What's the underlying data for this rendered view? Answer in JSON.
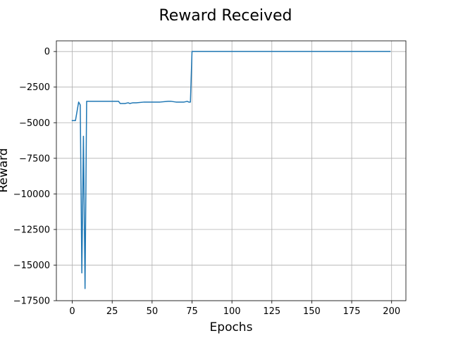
{
  "chart_data": {
    "type": "line",
    "title": "Reward Received",
    "xlabel": "Epochs",
    "ylabel": "Reward",
    "xlim": [
      -9.95,
      208.95
    ],
    "ylim": [
      -17500,
      750
    ],
    "grid": true,
    "legend": "none",
    "x_ticks": [
      0,
      25,
      50,
      75,
      100,
      125,
      150,
      175,
      200
    ],
    "y_ticks": [
      0,
      -2500,
      -5000,
      -7500,
      -10000,
      -12500,
      -15000,
      -17500
    ],
    "x_tick_labels": [
      "0",
      "25",
      "50",
      "75",
      "100",
      "125",
      "150",
      "175",
      "200"
    ],
    "y_tick_labels": [
      "0",
      "−2500",
      "−5000",
      "−7500",
      "−10000",
      "−12500",
      "−15000",
      "−17500"
    ],
    "series": [
      {
        "color": "#1f77b4",
        "x": [
          0,
          1,
          2,
          3,
          4,
          5,
          6,
          7,
          8,
          9,
          10,
          15,
          20,
          25,
          29,
          30,
          33,
          35,
          36,
          38,
          40,
          45,
          50,
          55,
          60,
          62,
          65,
          68,
          70,
          72,
          73,
          74,
          75,
          199
        ],
        "y": [
          -4850,
          -4850,
          -4850,
          -4200,
          -3550,
          -3750,
          -15550,
          -5950,
          -16650,
          -3500,
          -3500,
          -3500,
          -3500,
          -3500,
          -3500,
          -3650,
          -3650,
          -3600,
          -3650,
          -3600,
          -3600,
          -3550,
          -3550,
          -3550,
          -3500,
          -3500,
          -3550,
          -3550,
          -3550,
          -3500,
          -3550,
          -3550,
          0,
          0
        ]
      }
    ]
  }
}
